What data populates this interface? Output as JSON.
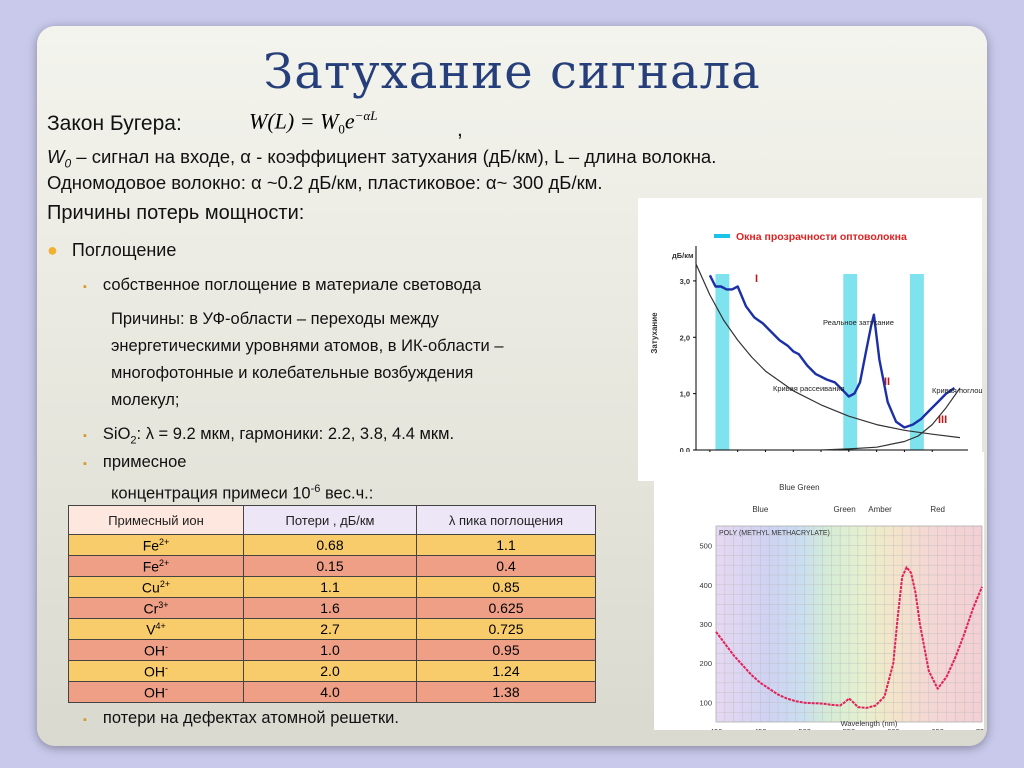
{
  "title": "Затухание сигнала",
  "law": {
    "label": "Закон Бугера:",
    "formula_main": "W(L) = W",
    "formula_sub": "0",
    "formula_e": "e",
    "formula_exp": "−αL",
    "comma": ","
  },
  "line1": {
    "w": "W",
    "w_sub": "0",
    "text": " – сигнал на входе, α - коэффициент затухания (дБ/км), L – длина волокна."
  },
  "line2": "Одномодовое волокно: α ~0.2 дБ/км, пластиковое: α~ 300 дБ/км.",
  "section_heading": "Причины потерь мощности:",
  "bullets": {
    "absorption": "Поглощение",
    "intrinsic": "собственное поглощение в материале световода",
    "reasons": [
      "Причины: в УФ-области – переходы между",
      "энергетическими уровнями атомов, в ИК-области –",
      "многофотонные и колебательные возбуждения",
      "молекул;"
    ],
    "sio2_a": "SiO",
    "sio2_sub": "2",
    "sio2_b": ": λ = 9.2 мкм, гармоники: 2.2, 3.8,  4.4 мкм.",
    "impurity": "примесное",
    "concentration_a": "концентрация примеси 10",
    "concentration_sup": "-6",
    "concentration_b": " вес.ч.:",
    "defects": "потери на дефектах атомной решетки."
  },
  "table": {
    "headers": [
      "Примесный ион",
      "Потери , дБ/км",
      "λ пика поглощения"
    ],
    "rows": [
      {
        "ion": "Fe",
        "charge": "2+",
        "loss": "0.68",
        "peak": "1.1",
        "color": "#f9cc6b"
      },
      {
        "ion": "Fe",
        "charge": "2+",
        "loss": "0.15",
        "peak": "0.4",
        "color": "#ef9f85"
      },
      {
        "ion": "Cu",
        "charge": "2+",
        "loss": "1.1",
        "peak": "0.85",
        "color": "#f9cc6b"
      },
      {
        "ion": "Cr",
        "charge": "3+",
        "loss": "1.6",
        "peak": "0.625",
        "color": "#ef9f85"
      },
      {
        "ion": "V",
        "charge": "4+",
        "loss": "2.7",
        "peak": "0.725",
        "color": "#f9cc6b"
      },
      {
        "ion": "OH",
        "charge": "-",
        "loss": "1.0",
        "peak": "0.95",
        "color": "#ef9f85"
      },
      {
        "ion": "OH",
        "charge": "-",
        "loss": "2.0",
        "peak": "1.24",
        "color": "#f9cc6b"
      },
      {
        "ion": "OH",
        "charge": "-",
        "loss": "4.0",
        "peak": "1.38",
        "color": "#ef9f85"
      }
    ]
  },
  "chart_data": [
    {
      "type": "line",
      "title": "Окна прозрачности оптоволокна",
      "ylabel": "Затухание",
      "yunit": "дБ/км",
      "xunit": "мкм",
      "x_ticks": [
        "0,8",
        "0,9",
        "1,0",
        "1,1",
        "1,2",
        "1,3",
        "1,4",
        "1,5",
        "1,6"
      ],
      "y_ticks": [
        "0,0",
        "1,0",
        "2,0",
        "3,0"
      ],
      "xlim": [
        0.75,
        1.7
      ],
      "ylim": [
        0,
        3.3
      ],
      "windows": [
        {
          "label": "I",
          "from": 0.82,
          "to": 0.87
        },
        {
          "label": "II",
          "from": 1.28,
          "to": 1.33
        },
        {
          "label": "III",
          "from": 1.52,
          "to": 1.57
        }
      ],
      "annotations": [
        "Реальное затухание",
        "Кривая рассеивания",
        "Кривая поглощения"
      ],
      "series": [
        {
          "name": "Реальное затухание",
          "x": [
            0.8,
            0.82,
            0.84,
            0.86,
            0.88,
            0.9,
            0.93,
            0.96,
            0.99,
            1.02,
            1.05,
            1.08,
            1.1,
            1.12,
            1.15,
            1.18,
            1.2,
            1.22,
            1.25,
            1.28,
            1.3,
            1.32,
            1.34,
            1.36,
            1.38,
            1.39,
            1.41,
            1.44,
            1.47,
            1.5,
            1.53,
            1.56,
            1.59,
            1.62,
            1.65,
            1.68
          ],
          "y": [
            3.1,
            2.9,
            2.9,
            2.85,
            2.85,
            2.9,
            2.55,
            2.35,
            2.25,
            2.1,
            1.95,
            1.85,
            1.75,
            1.7,
            1.5,
            1.35,
            1.3,
            1.25,
            1.2,
            1.05,
            0.95,
            1.0,
            1.2,
            1.7,
            2.2,
            2.4,
            1.6,
            0.85,
            0.5,
            0.4,
            0.45,
            0.55,
            0.7,
            0.85,
            1.0,
            1.1
          ]
        },
        {
          "name": "Кривая рассеивания",
          "x": [
            0.75,
            0.8,
            0.85,
            0.9,
            0.95,
            1.0,
            1.1,
            1.2,
            1.3,
            1.4,
            1.5,
            1.6,
            1.7
          ],
          "y": [
            3.3,
            2.75,
            2.3,
            1.95,
            1.65,
            1.4,
            1.05,
            0.8,
            0.6,
            0.45,
            0.35,
            0.28,
            0.22
          ]
        },
        {
          "name": "Кривая поглощения",
          "x": [
            1.2,
            1.3,
            1.4,
            1.5,
            1.55,
            1.6,
            1.65,
            1.7
          ],
          "y": [
            0.0,
            0.02,
            0.05,
            0.15,
            0.25,
            0.45,
            0.75,
            1.1
          ]
        }
      ]
    },
    {
      "type": "line",
      "title": "POLY (METHYL METHACRYLATE)",
      "xlabel": "Wavelength (nm)",
      "x_ticks": [
        "400",
        "450",
        "500",
        "550",
        "600",
        "650",
        "700"
      ],
      "y_ticks": [
        "100",
        "200",
        "300",
        "400",
        "500"
      ],
      "xlim": [
        400,
        700
      ],
      "ylim": [
        50,
        550
      ],
      "color_bands": [
        "Blue",
        "Blue Green",
        "Green",
        "Amber",
        "Red"
      ],
      "series": [
        {
          "name": "POLY (METHYL METHACRYLATE)",
          "x": [
            400,
            410,
            420,
            430,
            440,
            450,
            460,
            470,
            480,
            490,
            500,
            510,
            520,
            530,
            540,
            545,
            550,
            555,
            560,
            570,
            580,
            590,
            600,
            605,
            610,
            615,
            620,
            625,
            630,
            640,
            650,
            660,
            670,
            680,
            690,
            700
          ],
          "y": [
            280,
            250,
            220,
            195,
            170,
            150,
            135,
            120,
            110,
            103,
            99,
            98,
            97,
            94,
            92,
            100,
            110,
            100,
            88,
            86,
            92,
            115,
            200,
            320,
            420,
            445,
            430,
            380,
            300,
            180,
            135,
            165,
            215,
            275,
            340,
            395
          ]
        }
      ]
    }
  ]
}
